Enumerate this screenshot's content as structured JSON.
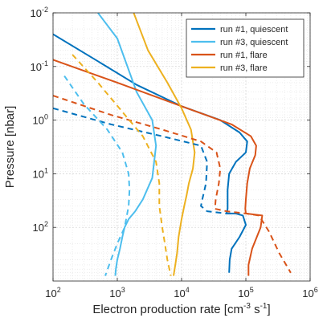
{
  "chart_data": {
    "type": "line",
    "title": "",
    "xlabel": "Electron production rate [cm-3 s-1]",
    "ylabel": "Pressure [nbar]",
    "x_scale": "log",
    "y_scale": "log",
    "y_reversed": true,
    "xlim": [
      100,
      1000000
    ],
    "ylim": [
      0.01,
      1000
    ],
    "grid": true,
    "legend_position": "top-right",
    "x_ticks": [
      {
        "value": 100,
        "mantissa": "10",
        "exp": "2"
      },
      {
        "value": 1000,
        "mantissa": "10",
        "exp": "3"
      },
      {
        "value": 10000,
        "mantissa": "10",
        "exp": "4"
      },
      {
        "value": 100000,
        "mantissa": "10",
        "exp": "5"
      },
      {
        "value": 1000000,
        "mantissa": "10",
        "exp": "6"
      }
    ],
    "y_ticks": [
      {
        "value": 0.01,
        "mantissa": "10",
        "exp": "-2"
      },
      {
        "value": 0.1,
        "mantissa": "10",
        "exp": "-1"
      },
      {
        "value": 1,
        "mantissa": "10",
        "exp": "0"
      },
      {
        "value": 10,
        "mantissa": "10",
        "exp": "1"
      },
      {
        "value": 100,
        "mantissa": "10",
        "exp": "2"
      }
    ],
    "series": [
      {
        "name": "run #1, quiescent",
        "color": "#0072BD",
        "dash": "solid",
        "x": [
          100,
          500,
          2000,
          10000,
          40000,
          80000,
          105000,
          100000,
          70000,
          55000,
          52000,
          52000,
          50000,
          70000,
          90000,
          100000,
          80000,
          60000,
          56000,
          55000
        ],
        "y": [
          0.025,
          0.08,
          0.22,
          0.55,
          1.0,
          1.7,
          2.5,
          4.0,
          6.0,
          10,
          20,
          45,
          55,
          55,
          60,
          90,
          150,
          250,
          400,
          700
        ]
      },
      {
        "name": "run #3, quiescent",
        "color": "#4DBEEE",
        "dash": "solid",
        "x": [
          500,
          1000,
          2000,
          3500,
          4000,
          3500,
          2500,
          1900,
          1500,
          1300,
          1200,
          1100,
          1000,
          950,
          930
        ],
        "y": [
          0.01,
          0.03,
          0.3,
          1.0,
          3.0,
          12,
          30,
          50,
          70,
          100,
          150,
          250,
          400,
          600,
          800
        ]
      },
      {
        "name": "run #1, flare",
        "color": "#D95319",
        "dash": "solid",
        "x": [
          100,
          1000,
          10000,
          60000,
          120000,
          145000,
          140000,
          115000,
          105000,
          100000,
          98000,
          100000,
          180000,
          170000,
          125000,
          110000,
          110000
        ],
        "y": [
          0.075,
          0.2,
          0.55,
          1.2,
          2.0,
          3.0,
          4.5,
          8.0,
          15,
          30,
          45,
          55,
          60,
          100,
          250,
          500,
          800
        ]
      },
      {
        "name": "run #3, flare",
        "color": "#EDB120",
        "dash": "solid",
        "x": [
          1800,
          3000,
          6000,
          10000,
          14000,
          16000,
          15000,
          13000,
          12000,
          11000,
          10000,
          9000,
          8500,
          8000,
          7500
        ],
        "y": [
          0.01,
          0.05,
          0.2,
          0.6,
          1.5,
          4.0,
          8.0,
          15,
          25,
          40,
          70,
          150,
          300,
          500,
          800
        ]
      },
      {
        "name": "",
        "color": "#0072BD",
        "dash": "dashed",
        "x": [
          100,
          800,
          5000,
          20000,
          25000,
          24000,
          21000,
          20000,
          25000,
          50000,
          80000
        ],
        "y": [
          0.6,
          1.2,
          2.0,
          3.0,
          6.0,
          15,
          30,
          40,
          50,
          55,
          55
        ]
      },
      {
        "name": "",
        "color": "#4DBEEE",
        "dash": "dashed",
        "x": [
          150,
          300,
          700,
          1200,
          1500,
          1550,
          1500,
          1300,
          1000,
          800,
          650
        ],
        "y": [
          0.15,
          0.5,
          1.5,
          4.0,
          10,
          20,
          40,
          100,
          200,
          400,
          800
        ]
      },
      {
        "name": "",
        "color": "#D95319",
        "dash": "dashed",
        "x": [
          100,
          800,
          5000,
          20000,
          35000,
          40000,
          38000,
          34000,
          33000,
          50000,
          100000,
          160000,
          230000,
          330000,
          500000
        ],
        "y": [
          0.35,
          0.8,
          1.5,
          2.5,
          4.0,
          8.0,
          15,
          30,
          45,
          50,
          55,
          60,
          120,
          300,
          700
        ]
      },
      {
        "name": "",
        "color": "#EDB120",
        "dash": "dashed",
        "x": [
          200,
          500,
          1200,
          2500,
          4000,
          4500,
          4500,
          5000,
          5500,
          6000,
          6800
        ],
        "y": [
          0.06,
          0.2,
          0.7,
          2.0,
          6.0,
          15,
          40,
          100,
          200,
          400,
          800
        ]
      }
    ]
  }
}
